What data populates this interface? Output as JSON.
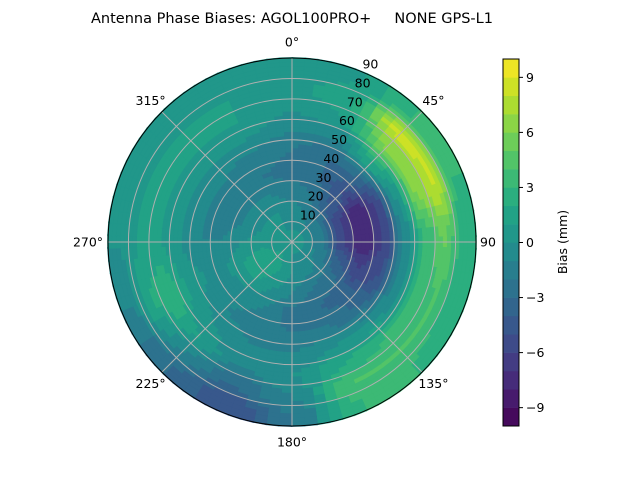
{
  "chart_data": {
    "type": "polar-contour",
    "title": "Antenna Phase Biases: AGOL100PRO+     NONE GPS-L1",
    "colorbar": {
      "label": "Bias (mm)",
      "range": [
        -10,
        10
      ],
      "level_step": 1,
      "ticks": [
        -9,
        -6,
        -3,
        0,
        3,
        6,
        9
      ],
      "tick_labels": [
        "−9",
        "−6",
        "−3",
        "0",
        "3",
        "6",
        "9"
      ],
      "colormap": "viridis"
    },
    "angular_ticks": [
      0,
      45,
      90,
      135,
      180,
      225,
      270,
      315
    ],
    "angular_tick_labels": [
      "0°",
      "45°",
      "90",
      "135°",
      "180°",
      "225°",
      "270°",
      "315°"
    ],
    "radial_ticks": [
      10,
      20,
      30,
      40,
      50,
      60,
      70,
      80,
      90
    ],
    "radial_tick_labels": [
      "10",
      "20",
      "30",
      "40",
      "50",
      "60",
      "70",
      "80",
      "90"
    ],
    "radial_range": [
      0,
      90
    ],
    "angular_direction": "clockwise",
    "zero_location": "north",
    "grid": true,
    "azimuths_deg": [
      0,
      22.5,
      45,
      67.5,
      90,
      112.5,
      135,
      157.5,
      180,
      202.5,
      225,
      247.5,
      270,
      292.5,
      315,
      337.5
    ],
    "zenith_deg": [
      5,
      15,
      25,
      35,
      45,
      55,
      65,
      75,
      85
    ],
    "values_mm": [
      [
        0,
        -0.5,
        -1.5,
        -2.5,
        -2,
        -1,
        0,
        0.5,
        0
      ],
      [
        0,
        -1,
        -2,
        -3,
        -3,
        -1,
        1,
        2,
        1
      ],
      [
        0,
        -2,
        -4,
        -5,
        -3,
        2,
        6,
        8.5,
        3
      ],
      [
        0,
        -2,
        -6,
        -8,
        -6,
        0,
        6,
        8,
        3
      ],
      [
        0,
        -2,
        -6,
        -8,
        -6,
        -1,
        3,
        5,
        2
      ],
      [
        0,
        -1.5,
        -4,
        -6,
        -5,
        -1,
        3,
        4,
        2
      ],
      [
        0,
        -1,
        -2.5,
        -3.5,
        -3,
        0,
        3,
        4,
        3
      ],
      [
        0,
        -0.5,
        -2,
        -3,
        -2,
        0,
        2,
        4,
        3
      ],
      [
        0,
        0,
        -1,
        -2.5,
        -2,
        -1,
        0,
        -1,
        -2
      ],
      [
        0.5,
        1,
        0,
        -1,
        -1.5,
        -1,
        -1,
        -3,
        -5
      ],
      [
        1,
        2,
        1,
        -0.5,
        -1,
        0,
        1,
        -1,
        -3
      ],
      [
        0.5,
        1.5,
        1,
        0,
        0,
        1,
        3,
        2,
        -1
      ],
      [
        0,
        0.5,
        0,
        -1,
        -1,
        0,
        1,
        1,
        0
      ],
      [
        0,
        0,
        -1,
        -1.5,
        -1,
        0,
        1,
        1,
        0
      ],
      [
        0,
        0,
        -1,
        -2,
        -1,
        0,
        1,
        1,
        0
      ],
      [
        0,
        0,
        -1,
        -2,
        -1.5,
        0,
        1,
        1,
        0
      ]
    ]
  }
}
